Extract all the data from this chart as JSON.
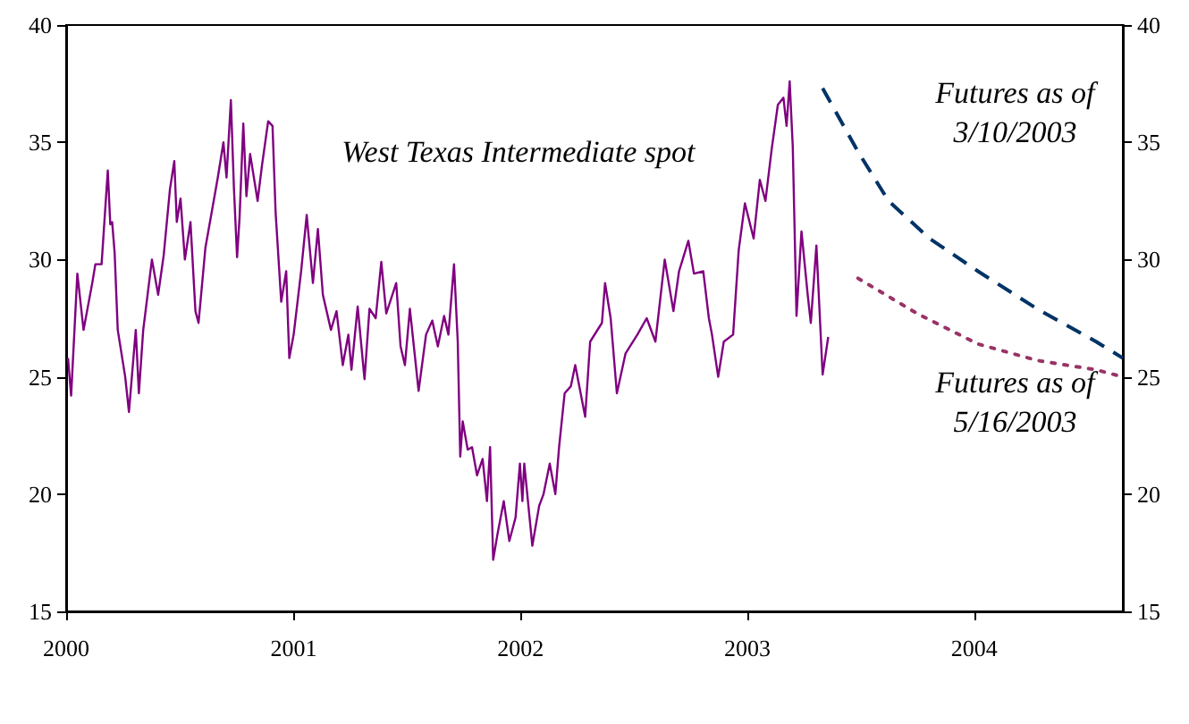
{
  "chart_data": {
    "type": "line",
    "xlim": [
      "2000-01-01",
      "2004-08-27"
    ],
    "xticks": [
      "2000",
      "2001",
      "2002",
      "2003",
      "2004"
    ],
    "ylim": [
      15,
      40
    ],
    "yticks": [
      15,
      20,
      25,
      30,
      35,
      40
    ],
    "y2lim": [
      15,
      40
    ],
    "y2ticks": [
      15,
      20,
      25,
      30,
      35,
      40
    ],
    "grid": false,
    "marker": "none",
    "series": [
      {
        "name": "West Texas Intermediate spot",
        "color": "#800080",
        "line_style": "solid",
        "x": [
          "2000-01-04",
          "2000-01-09",
          "2000-01-19",
          "2000-01-29",
          "2000-02-12",
          "2000-02-17",
          "2000-02-27",
          "2000-03-08",
          "2000-03-12",
          "2000-03-15",
          "2000-03-19",
          "2000-03-24",
          "2000-04-05",
          "2000-04-11",
          "2000-04-22",
          "2000-04-27",
          "2000-05-04",
          "2000-05-18",
          "2000-05-28",
          "2000-06-06",
          "2000-06-16",
          "2000-06-23",
          "2000-06-27",
          "2000-07-03",
          "2000-07-10",
          "2000-07-19",
          "2000-07-27",
          "2000-08-01",
          "2000-08-12",
          "2000-08-22",
          "2000-09-01",
          "2000-09-10",
          "2000-09-15",
          "2000-09-22",
          "2000-09-27",
          "2000-10-02",
          "2000-10-06",
          "2000-10-12",
          "2000-10-17",
          "2000-10-23",
          "2000-11-04",
          "2000-11-11",
          "2000-11-21",
          "2000-11-28",
          "2000-12-03",
          "2000-12-12",
          "2000-12-20",
          "2000-12-25",
          "2001-01-01",
          "2001-01-13",
          "2001-01-22",
          "2001-02-01",
          "2001-02-09",
          "2001-02-17",
          "2001-03-02",
          "2001-03-11",
          "2001-03-21",
          "2001-03-30",
          "2001-04-04",
          "2001-04-14",
          "2001-04-25",
          "2001-05-03",
          "2001-05-13",
          "2001-05-22",
          "2001-05-30",
          "2001-06-15",
          "2001-06-22",
          "2001-06-29",
          "2001-07-07",
          "2001-07-21",
          "2001-08-02",
          "2001-08-12",
          "2001-08-21",
          "2001-08-31",
          "2001-09-07",
          "2001-09-16",
          "2001-09-22",
          "2001-09-26",
          "2001-09-30",
          "2001-10-08",
          "2001-10-15",
          "2001-10-23",
          "2001-11-01",
          "2001-11-08",
          "2001-11-13",
          "2001-11-18",
          "2001-11-25",
          "2001-12-05",
          "2001-12-14",
          "2001-12-24",
          "2001-12-31",
          "2002-01-04",
          "2002-01-07",
          "2002-01-20",
          "2002-01-31",
          "2002-02-07",
          "2002-02-17",
          "2002-02-26",
          "2002-03-04",
          "2002-03-13",
          "2002-03-23",
          "2002-03-30",
          "2002-04-15",
          "2002-04-23",
          "2002-05-12",
          "2002-05-17",
          "2002-05-26",
          "2002-06-05",
          "2002-06-19",
          "2002-07-08",
          "2002-07-23",
          "2002-08-06",
          "2002-08-21",
          "2002-09-04",
          "2002-09-13",
          "2002-09-28",
          "2002-10-07",
          "2002-10-22",
          "2002-10-31",
          "2002-11-05",
          "2002-11-15",
          "2002-11-24",
          "2002-12-09",
          "2002-12-18",
          "2002-12-28",
          "2003-01-11",
          "2003-01-21",
          "2003-01-30",
          "2003-02-09",
          "2003-02-19",
          "2003-02-28",
          "2003-03-05",
          "2003-03-10",
          "2003-03-15",
          "2003-03-21",
          "2003-03-29",
          "2003-04-08",
          "2003-04-13",
          "2003-04-22",
          "2003-05-02",
          "2003-05-06",
          "2003-05-11"
        ],
        "values": [
          25.8,
          24.2,
          29.4,
          27.0,
          29.0,
          29.8,
          29.8,
          33.8,
          31.5,
          31.6,
          30.3,
          27.0,
          25.0,
          23.5,
          27.0,
          24.3,
          27.0,
          30.0,
          28.5,
          30.2,
          33.0,
          34.2,
          31.6,
          32.6,
          30.0,
          31.6,
          27.8,
          27.3,
          30.5,
          32.0,
          33.5,
          35.0,
          33.5,
          36.8,
          33.0,
          30.1,
          31.8,
          35.8,
          32.7,
          34.5,
          32.5,
          34.0,
          35.9,
          35.7,
          32.0,
          28.2,
          29.5,
          25.8,
          26.8,
          29.5,
          31.9,
          29.0,
          31.3,
          28.5,
          27.0,
          27.8,
          25.5,
          26.8,
          25.3,
          28.0,
          24.9,
          27.9,
          27.5,
          29.9,
          27.7,
          29.0,
          26.3,
          25.5,
          27.9,
          24.4,
          26.8,
          27.4,
          26.3,
          27.6,
          26.8,
          29.8,
          26.5,
          21.6,
          23.1,
          21.9,
          22.0,
          20.8,
          21.5,
          19.7,
          22.0,
          17.2,
          18.3,
          19.7,
          18.0,
          19.0,
          21.3,
          19.7,
          21.3,
          17.8,
          19.5,
          20.0,
          21.3,
          20.0,
          22.0,
          24.3,
          24.6,
          25.5,
          23.3,
          26.5,
          27.3,
          29.0,
          27.5,
          24.3,
          26.0,
          26.8,
          27.5,
          26.5,
          30.0,
          27.8,
          29.5,
          30.8,
          29.4,
          29.5,
          27.5,
          26.8,
          25.0,
          26.5,
          26.8,
          30.4,
          32.4,
          30.9,
          33.4,
          32.5,
          34.7,
          36.6,
          36.9,
          35.7,
          37.6,
          34.8,
          27.6,
          31.2,
          28.5,
          27.3,
          30.6,
          25.1,
          25.8,
          26.7
        ]
      },
      {
        "name": "Futures as of\n3/10/2003",
        "color": "#003366",
        "line_style": "dashed",
        "x": [
          "2003-05-02",
          "2003-06-28",
          "2003-08-16",
          "2003-10-21",
          "2004-01-07",
          "2004-04-11",
          "2004-07-15",
          "2004-08-27"
        ],
        "values": [
          37.3,
          34.6,
          32.5,
          30.9,
          29.5,
          27.9,
          26.5,
          25.8
        ]
      },
      {
        "name": "Futures as of\n5/16/2003",
        "color": "#993366",
        "line_style": "dotted",
        "x": [
          "2003-06-28",
          "2003-10-01",
          "2004-01-07",
          "2004-04-11",
          "2004-07-15",
          "2004-08-27"
        ],
        "values": [
          29.2,
          27.7,
          26.4,
          25.7,
          25.3,
          25.0
        ]
      }
    ]
  }
}
